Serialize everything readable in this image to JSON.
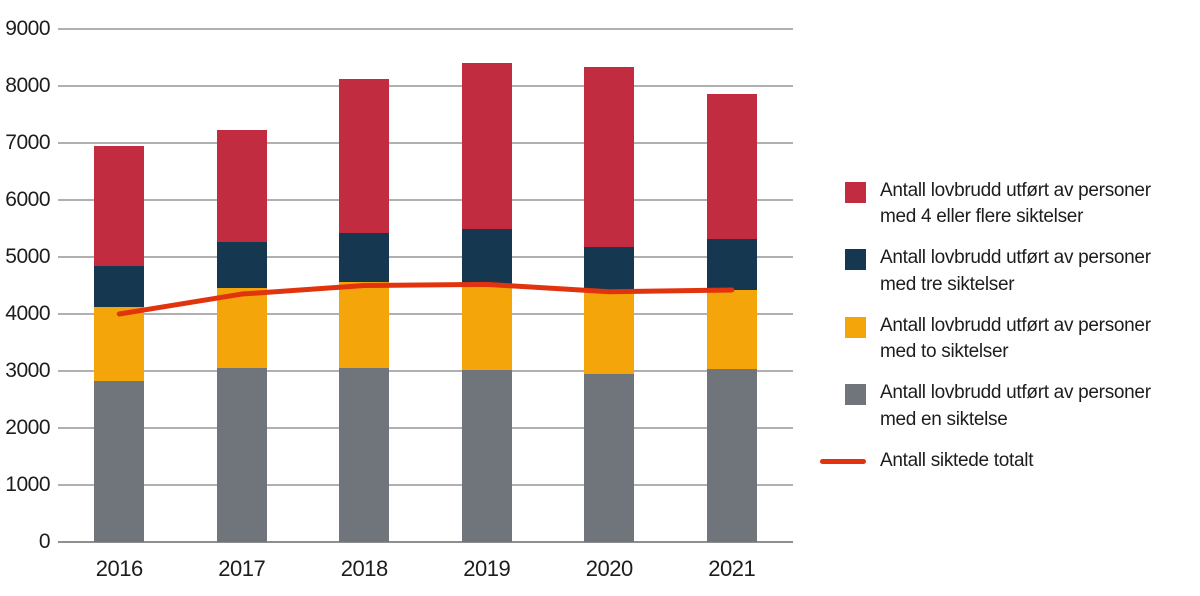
{
  "chart_data": {
    "type": "bar",
    "subtype": "stacked-bar-with-line",
    "title": "",
    "xlabel": "",
    "ylabel": "",
    "categories": [
      "2016",
      "2017",
      "2018",
      "2019",
      "2020",
      "2021"
    ],
    "series": [
      {
        "name": "Antall lovbrudd utført av personer med en siktelse",
        "color": "#6F757A",
        "values": [
          2820,
          3050,
          3050,
          3010,
          2950,
          3030
        ]
      },
      {
        "name": "Antall lovbrudd utført av personer med to siktelser",
        "color": "#F3A50A",
        "values": [
          1310,
          1410,
          1510,
          1520,
          1440,
          1400
        ]
      },
      {
        "name": "Antall lovbrudd utført av personer med tre siktelser",
        "color": "#15374F",
        "values": [
          720,
          800,
          860,
          960,
          790,
          890
        ]
      },
      {
        "name": "Antall lovbrudd utført av personer med 4 eller flere siktelser",
        "color": "#C22C40",
        "values": [
          2100,
          1960,
          2710,
          2910,
          3160,
          2540
        ]
      }
    ],
    "line_series": {
      "name": "Antall siktede totalt",
      "color": "#E1330E",
      "values": [
        4000,
        4350,
        4500,
        4520,
        4390,
        4420
      ]
    },
    "ylim": [
      0,
      9000
    ],
    "ytick_step": 1000,
    "grid": true,
    "legend_position": "right"
  },
  "y_axis": {
    "ticks": [
      "0",
      "1000",
      "2000",
      "3000",
      "4000",
      "5000",
      "6000",
      "7000",
      "8000",
      "9000"
    ]
  },
  "legend": {
    "items": [
      {
        "lines": [
          "Antall lovbrudd utført av personer",
          "med 4 eller flere siktelser"
        ],
        "color": "#C22C40",
        "swatch": "square"
      },
      {
        "lines": [
          "Antall lovbrudd utført av personer",
          "med tre siktelser"
        ],
        "color": "#15374F",
        "swatch": "square"
      },
      {
        "lines": [
          "Antall lovbrudd utført av personer",
          "med to siktelser"
        ],
        "color": "#F3A50A",
        "swatch": "square"
      },
      {
        "lines": [
          "Antall lovbrudd utført av personer",
          "med en siktelse"
        ],
        "color": "#6F757A",
        "swatch": "square"
      },
      {
        "lines": [
          "Antall siktede totalt"
        ],
        "color": "#E1330E",
        "swatch": "line"
      }
    ]
  }
}
